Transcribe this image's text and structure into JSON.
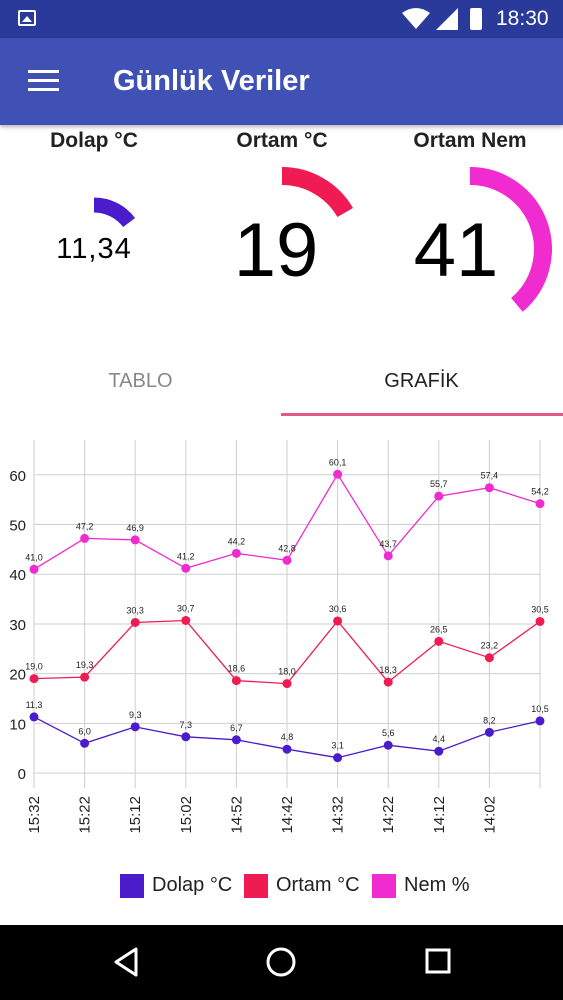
{
  "status_bar": {
    "time": "18:30"
  },
  "app_bar": {
    "title": "Günlük Veriler"
  },
  "gauges": [
    {
      "label": "Dolap °C",
      "value": "11,34",
      "color": "#4a1ccc"
    },
    {
      "label": "Ortam °C",
      "value": "19",
      "color": "#ef1b52"
    },
    {
      "label": "Ortam Nem",
      "value": "41",
      "color": "#f02bd0"
    }
  ],
  "tabs": {
    "tablo": "TABLO",
    "grafik": "GRAFİK",
    "active": "grafik"
  },
  "chart_data": {
    "type": "line",
    "categories": [
      "15:32",
      "15:22",
      "15:12",
      "15:02",
      "14:52",
      "14:42",
      "14:32",
      "14:22",
      "14:12",
      "14:02",
      ""
    ],
    "ylim": [
      -3,
      67
    ],
    "yticks": [
      "0",
      "10",
      "20",
      "30",
      "40",
      "50",
      "60"
    ],
    "grid": true,
    "legend_position": "bottom",
    "series": [
      {
        "name": "Dolap °C",
        "color": "#4a1ccc",
        "values": [
          11.3,
          6.0,
          9.3,
          7.3,
          6.7,
          4.8,
          3.1,
          5.6,
          4.4,
          8.2,
          10.5
        ],
        "labels": [
          "11,3",
          "6,0",
          "9,3",
          "7,3",
          "6,7",
          "4,8",
          "3,1",
          "5,6",
          "4,4",
          "8,2",
          "10,5"
        ]
      },
      {
        "name": "Ortam °C",
        "color": "#ef1b52",
        "values": [
          19.0,
          19.3,
          30.3,
          30.7,
          18.6,
          18.0,
          30.6,
          18.3,
          26.5,
          23.2,
          30.5
        ],
        "labels": [
          "19,0",
          "19,3",
          "30,3",
          "30,7",
          "18,6",
          "18,0",
          "30,6",
          "18,3",
          "26,5",
          "23,2",
          "30,5"
        ]
      },
      {
        "name": "Nem %",
        "color": "#f02bd0",
        "values": [
          41.0,
          47.2,
          46.9,
          41.2,
          44.2,
          42.8,
          60.1,
          43.7,
          55.7,
          57.4,
          54.2
        ],
        "labels": [
          "41,0",
          "47,2",
          "46,9",
          "41,2",
          "44,2",
          "42,8",
          "60,1",
          "43,7",
          "55,7",
          "57,4",
          "54,2"
        ]
      }
    ]
  }
}
